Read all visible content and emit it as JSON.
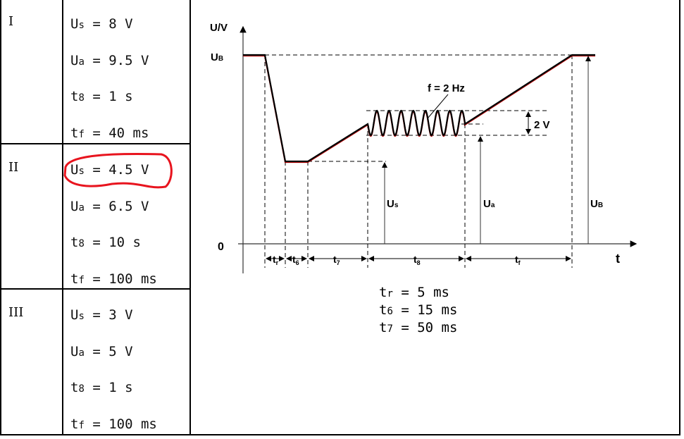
{
  "table": {
    "rows": [
      {
        "label": "I",
        "values": [
          {
            "sym": "U",
            "sub": "s",
            "rest": " = 8 V"
          },
          {
            "sym": "U",
            "sub": "a",
            "rest": " = 9.5 V"
          },
          {
            "sym": "t",
            "sub": "8",
            "rest": " = 1 s"
          },
          {
            "sym": "t",
            "sub": "f",
            "rest": " = 40 ms"
          }
        ]
      },
      {
        "label": "II",
        "values": [
          {
            "sym": "U",
            "sub": "s",
            "rest": " = 4.5 V"
          },
          {
            "sym": "U",
            "sub": "a",
            "rest": " = 6.5 V"
          },
          {
            "sym": "t",
            "sub": "8",
            "rest": " = 10 s"
          },
          {
            "sym": "t",
            "sub": "f",
            "rest": " = 100 ms"
          }
        ]
      },
      {
        "label": "III",
        "values": [
          {
            "sym": "U",
            "sub": "s",
            "rest": " = 3 V"
          },
          {
            "sym": "U",
            "sub": "a",
            "rest": " = 5 V"
          },
          {
            "sym": "t",
            "sub": "8",
            "rest": " = 1 s"
          },
          {
            "sym": "t",
            "sub": "f",
            "rest": " = 100 ms"
          }
        ]
      }
    ],
    "highlight": {
      "row": "II",
      "item": "Us = 4.5 V",
      "color": "#e8141e"
    }
  },
  "diagram": {
    "y_axis_label": "U/V",
    "x_axis_label": "t",
    "zero_label": "0",
    "ub_label": "U",
    "ub_sub": "B",
    "us_label": "U",
    "us_sub": "s",
    "ua_label": "U",
    "ua_sub": "a",
    "freq_label": "f = 2 Hz",
    "amplitude_label": "2 V",
    "intervals": [
      {
        "sym": "t",
        "sub": "r"
      },
      {
        "sym": "t",
        "sub": "6"
      },
      {
        "sym": "t",
        "sub": "7"
      },
      {
        "sym": "t",
        "sub": "8"
      },
      {
        "sym": "t",
        "sub": "f"
      }
    ],
    "curve_color": "#000000",
    "curve_under_color": "#c00000"
  },
  "notes": [
    {
      "sym": "t",
      "sub": "r",
      "rest": " = 5 ms"
    },
    {
      "sym": "t",
      "sub": "6",
      "rest": " = 15 ms"
    },
    {
      "sym": "t",
      "sub": "7",
      "rest": " = 50 ms"
    }
  ]
}
